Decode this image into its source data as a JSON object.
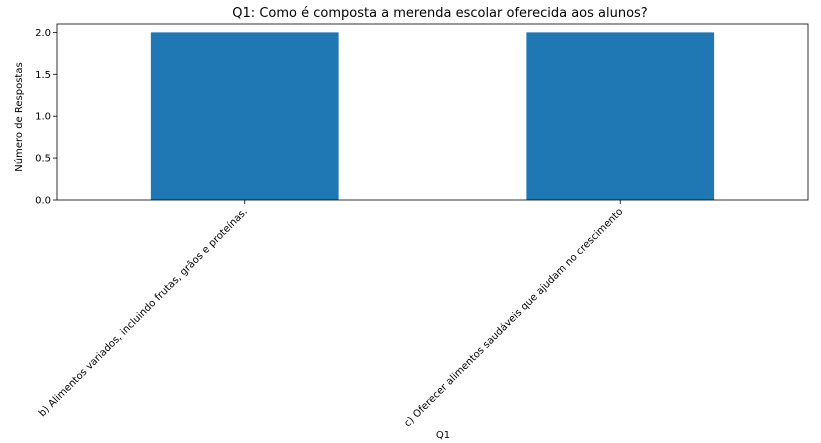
{
  "chart_data": {
    "type": "bar",
    "title": "Q1: Como é composta a merenda escolar oferecida aos alunos?",
    "xlabel": "Q1",
    "ylabel": "Número de Respostas",
    "categories": [
      "b) Alimentos variados, incluindo frutas, grãos e proteínas.",
      "c) Oferecer alimentos saudáveis que ajudam no crescimento"
    ],
    "values": [
      2,
      2
    ],
    "ylim": [
      0,
      2.1
    ],
    "yticks": [
      "0.0",
      "0.5",
      "1.0",
      "1.5",
      "2.0"
    ],
    "bar_color": "#1f77b4",
    "grid": false,
    "legend": "none"
  }
}
